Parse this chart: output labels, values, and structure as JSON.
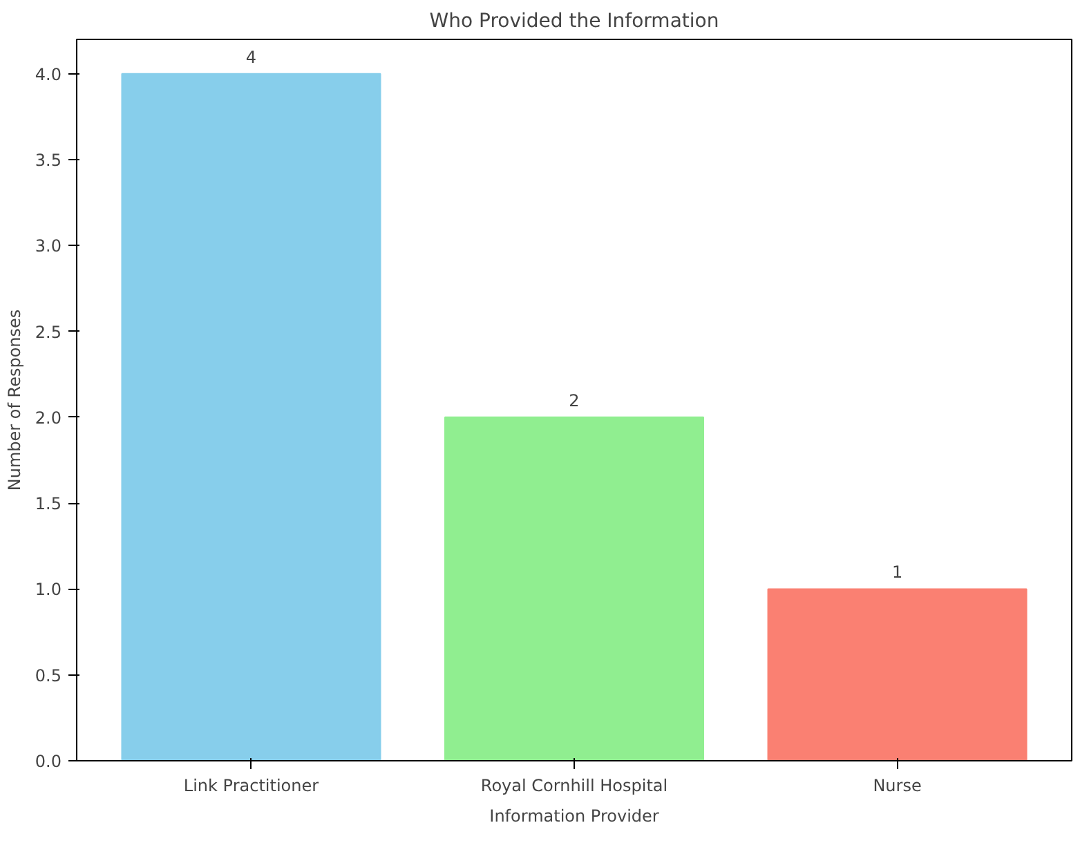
{
  "chart_data": {
    "type": "bar",
    "title": "Who Provided the Information",
    "xlabel": "Information Provider",
    "ylabel": "Number of Responses",
    "categories": [
      "Link Practitioner",
      "Royal Cornhill Hospital",
      "Nurse"
    ],
    "values": [
      4,
      2,
      1
    ],
    "colors": [
      "#87ceeb",
      "#90ee90",
      "#fa8072"
    ],
    "ylim": [
      0,
      4.2
    ],
    "yticks": [
      {
        "value": 0,
        "label": "0.0"
      },
      {
        "value": 0.5,
        "label": "0.5"
      },
      {
        "value": 1,
        "label": "1.0"
      },
      {
        "value": 1.5,
        "label": "1.5"
      },
      {
        "value": 2,
        "label": "2.0"
      },
      {
        "value": 2.5,
        "label": "2.5"
      },
      {
        "value": 3,
        "label": "3.0"
      },
      {
        "value": 3.5,
        "label": "3.5"
      },
      {
        "value": 4,
        "label": "4.0"
      }
    ],
    "data_labels": true,
    "grid": false
  }
}
